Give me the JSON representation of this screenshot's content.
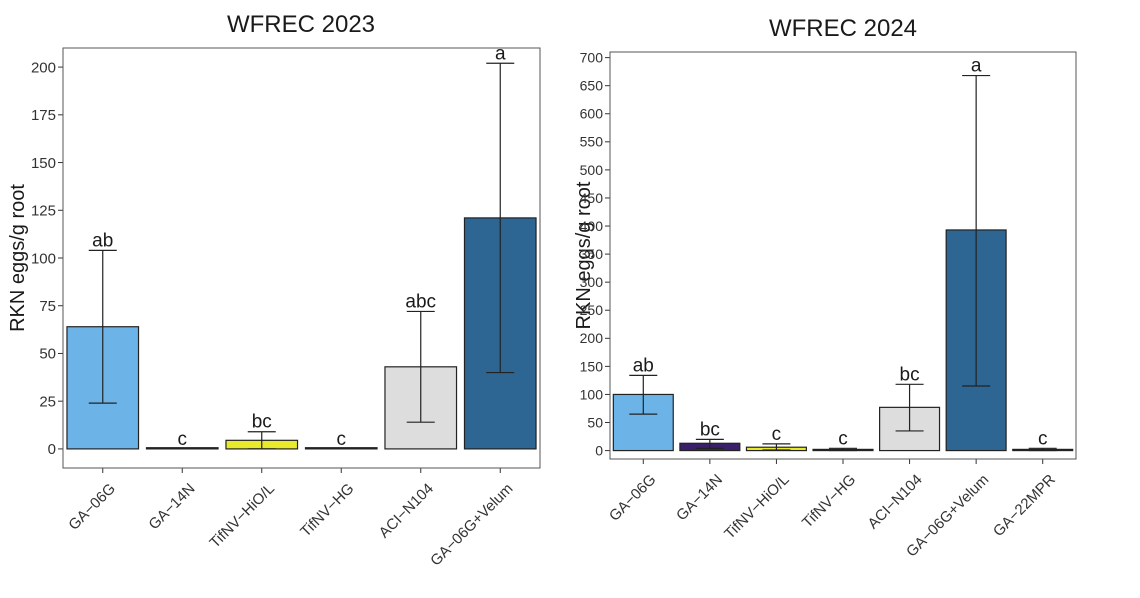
{
  "chart_data": [
    {
      "type": "bar",
      "title": "WFREC 2023",
      "xlabel": "",
      "ylabel": "RKN eggs/g root",
      "ylim": [
        -10,
        210
      ],
      "yticks": [
        0,
        25,
        50,
        75,
        100,
        125,
        150,
        175,
        200
      ],
      "ytick_labels": [
        "0",
        "25",
        "50",
        "75",
        "100",
        "125",
        "150",
        "175",
        "200"
      ],
      "grid": false,
      "categories": [
        "GA−06G",
        "GA−14N",
        "TifNV−HiO/L",
        "TifNV−HG",
        "ACI−N104",
        "GA−06G+Velum"
      ],
      "values": [
        64,
        0,
        4.5,
        0,
        43,
        121
      ],
      "error_low": [
        24,
        0,
        0,
        0,
        14,
        40
      ],
      "error_high": [
        104,
        0,
        9,
        0,
        72,
        202
      ],
      "significance_letters": [
        "ab",
        "c",
        "bc",
        "c",
        "abc",
        "a"
      ],
      "colors": [
        "#6cb3e8",
        "#3b1f6b",
        "#eaea2c",
        "#d9d9d9",
        "#dddddd",
        "#2d6693"
      ]
    },
    {
      "type": "bar",
      "title": "WFREC 2024",
      "xlabel": "",
      "ylabel": "RKN eggs/g root",
      "ylim": [
        -15,
        710
      ],
      "yticks": [
        0,
        50,
        100,
        150,
        200,
        250,
        300,
        350,
        400,
        450,
        500,
        550,
        600,
        650,
        700
      ],
      "ytick_labels": [
        "0",
        "50",
        "100",
        "150",
        "200",
        "250",
        "300",
        "350",
        "400",
        "450",
        "500",
        "550",
        "600",
        "650",
        "700"
      ],
      "grid": false,
      "categories": [
        "GA−06G",
        "GA−14N",
        "TifNV−HiO/L",
        "TifNV−HG",
        "ACI−N104",
        "GA−06G+Velum",
        "GA−22MPR"
      ],
      "values": [
        100,
        13,
        6,
        2,
        77,
        393,
        2
      ],
      "error_low": [
        65,
        4,
        1,
        0,
        35,
        115,
        0
      ],
      "error_high": [
        134,
        20,
        12,
        4,
        118,
        668,
        4
      ],
      "significance_letters": [
        "ab",
        "bc",
        "c",
        "c",
        "bc",
        "a",
        "c"
      ],
      "colors": [
        "#6cb3e8",
        "#3b1f6b",
        "#eaea2c",
        "#d9d9d9",
        "#dddddd",
        "#2d6693",
        "#3b1f6b"
      ]
    }
  ]
}
